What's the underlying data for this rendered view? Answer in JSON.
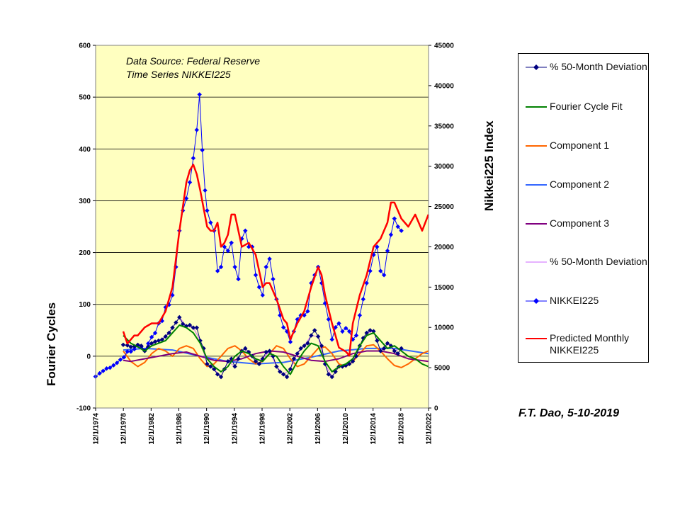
{
  "chart_data": {
    "type": "line",
    "title": "",
    "ylabel_left": "Fourier Cycles",
    "ylabel_right": "Nikkei225 Index",
    "annotation_lines": [
      "Data Source:  Federal Reserve",
      "Time Series NIKKEI225"
    ],
    "x_tick_labels": [
      "12/1/1974",
      "12/1/1978",
      "12/1/1982",
      "12/1/1986",
      "12/1/1990",
      "12/1/1994",
      "12/1/1998",
      "12/1/2002",
      "12/1/2006",
      "12/1/2010",
      "12/1/2014",
      "12/1/2018",
      "12/1/2022"
    ],
    "xlim": [
      1974.92,
      2022.92
    ],
    "ylim_left": [
      -100,
      600
    ],
    "y_ticks_left": [
      "-100",
      "0",
      "100",
      "200",
      "300",
      "400",
      "500",
      "600"
    ],
    "ylim_right": [
      0,
      45000
    ],
    "y_ticks_right": [
      "0",
      "5000",
      "10000",
      "15000",
      "20000",
      "25000",
      "30000",
      "35000",
      "40000",
      "45000"
    ],
    "plot_background": "#ffffc0",
    "gridlines": true,
    "legend_position": "right",
    "signature": "F.T. Dao, 5-10-2019",
    "series": [
      {
        "name": "% 50-Month Deviation",
        "axis": "left",
        "color": "#000080",
        "marker": "diamond",
        "x": [
          1978.9,
          1979.5,
          1980.0,
          1980.5,
          1981.0,
          1981.5,
          1982.0,
          1982.5,
          1983.0,
          1983.5,
          1984.0,
          1984.5,
          1985.0,
          1985.5,
          1986.0,
          1986.5,
          1987.0,
          1987.5,
          1988.0,
          1988.5,
          1989.0,
          1989.5,
          1990.0,
          1990.5,
          1991.0,
          1991.5,
          1992.0,
          1992.5,
          1993.0,
          1993.5,
          1994.0,
          1994.5,
          1995.0,
          1995.5,
          1996.0,
          1996.5,
          1997.0,
          1997.5,
          1998.0,
          1998.5,
          1999.0,
          1999.5,
          2000.0,
          2000.5,
          2001.0,
          2001.5,
          2002.0,
          2002.5,
          2003.0,
          2003.5,
          2004.0,
          2004.5,
          2005.0,
          2005.5,
          2006.0,
          2006.5,
          2007.0,
          2007.5,
          2008.0,
          2008.5,
          2009.0,
          2009.5,
          2010.0,
          2010.5,
          2011.0,
          2011.5,
          2012.0,
          2012.5,
          2013.0,
          2013.5,
          2014.0,
          2014.5,
          2015.0,
          2015.5,
          2016.0,
          2016.5,
          2017.0,
          2017.5,
          2018.0,
          2018.5,
          2019.0
        ],
        "y": [
          22,
          21,
          18,
          19,
          22,
          20,
          10,
          18,
          25,
          28,
          30,
          32,
          38,
          45,
          55,
          65,
          75,
          62,
          58,
          60,
          55,
          55,
          30,
          15,
          -15,
          -20,
          -25,
          -35,
          -40,
          -25,
          -10,
          -5,
          -20,
          -5,
          10,
          15,
          8,
          0,
          -10,
          -15,
          -5,
          8,
          10,
          0,
          -20,
          -30,
          -35,
          -40,
          -25,
          -5,
          5,
          15,
          20,
          25,
          40,
          50,
          38,
          20,
          -15,
          -35,
          -40,
          -30,
          -20,
          -20,
          -18,
          -15,
          -10,
          0,
          20,
          35,
          45,
          50,
          48,
          30,
          10,
          15,
          25,
          20,
          10,
          5,
          15
        ]
      },
      {
        "name": "Fourier Cycle Fit",
        "axis": "left",
        "color": "#008000",
        "marker": "none",
        "x": [
          1978.9,
          1980.0,
          1981.0,
          1982.0,
          1983.0,
          1984.0,
          1985.0,
          1986.0,
          1987.0,
          1988.0,
          1989.0,
          1990.0,
          1991.0,
          1992.0,
          1993.0,
          1994.0,
          1995.0,
          1996.0,
          1997.0,
          1998.0,
          1999.0,
          2000.0,
          2001.0,
          2002.0,
          2003.0,
          2004.0,
          2005.0,
          2006.0,
          2007.0,
          2008.0,
          2009.0,
          2010.0,
          2011.0,
          2012.0,
          2013.0,
          2014.0,
          2015.0,
          2016.0,
          2017.0,
          2018.0,
          2019.0,
          2020.0,
          2021.0,
          2022.0,
          2022.9
        ],
        "y": [
          40,
          25,
          18,
          10,
          20,
          25,
          30,
          45,
          60,
          55,
          45,
          25,
          -5,
          -20,
          -30,
          -20,
          0,
          10,
          5,
          -5,
          -10,
          5,
          0,
          -20,
          -35,
          -10,
          10,
          25,
          20,
          -10,
          -30,
          -20,
          -15,
          -5,
          20,
          40,
          45,
          30,
          15,
          20,
          10,
          0,
          -5,
          -15,
          -20
        ]
      },
      {
        "name": "Component 1",
        "axis": "left",
        "color": "#ff6600",
        "marker": "none",
        "x": [
          1978.9,
          1980.0,
          1981.0,
          1982.0,
          1983.0,
          1984.0,
          1985.0,
          1986.0,
          1987.0,
          1988.0,
          1989.0,
          1990.0,
          1991.0,
          1992.0,
          1993.0,
          1994.0,
          1995.0,
          1996.0,
          1997.0,
          1998.0,
          1999.0,
          2000.0,
          2001.0,
          2002.0,
          2003.0,
          2004.0,
          2005.0,
          2006.0,
          2007.0,
          2008.0,
          2009.0,
          2010.0,
          2011.0,
          2012.0,
          2013.0,
          2014.0,
          2015.0,
          2016.0,
          2017.0,
          2018.0,
          2019.0,
          2020.0,
          2021.0,
          2022.0,
          2022.9
        ],
        "y": [
          10,
          -10,
          -20,
          -12,
          5,
          15,
          10,
          0,
          15,
          20,
          15,
          -5,
          -20,
          -15,
          0,
          15,
          20,
          10,
          -5,
          -15,
          -10,
          5,
          20,
          15,
          -5,
          -20,
          -15,
          0,
          15,
          18,
          5,
          -15,
          -20,
          -10,
          5,
          20,
          22,
          10,
          -5,
          -18,
          -22,
          -15,
          -5,
          5,
          10
        ]
      },
      {
        "name": "Component 2",
        "axis": "left",
        "color": "#3366ff",
        "marker": "none",
        "x": [
          1978.9,
          1982.0,
          1986.0,
          1990.0,
          1994.0,
          1998.0,
          2002.0,
          2006.0,
          2010.0,
          2014.0,
          2018.0,
          2022.9
        ],
        "y": [
          12,
          15,
          12,
          0,
          -10,
          -15,
          -12,
          -2,
          10,
          15,
          15,
          5
        ]
      },
      {
        "name": "Component 3",
        "axis": "left",
        "color": "#800080",
        "marker": "none",
        "x": [
          1978.9,
          1980.0,
          1982.0,
          1984.0,
          1986.0,
          1988.0,
          1990.0,
          1992.0,
          1994.0,
          1996.0,
          1998.0,
          2000.0,
          2002.0,
          2004.0,
          2006.0,
          2008.0,
          2010.0,
          2012.0,
          2014.0,
          2016.0,
          2018.0,
          2020.0,
          2022.9
        ],
        "y": [
          -8,
          -10,
          -5,
          0,
          5,
          8,
          0,
          -8,
          -10,
          -5,
          5,
          10,
          8,
          0,
          -8,
          -10,
          -5,
          5,
          10,
          10,
          5,
          -5,
          -10
        ]
      },
      {
        "name": "% 50-Month Deviation",
        "axis": "left",
        "color": "#cc66ff",
        "marker": "none",
        "x": [
          1978.9,
          1980.0,
          1981.0,
          1982.0,
          1983.0,
          1984.0,
          1985.0,
          1986.0,
          1987.0,
          1988.0,
          1989.0,
          1990.0,
          1991.0,
          1992.0,
          1993.0,
          1994.0,
          1995.0,
          1996.0,
          1997.0,
          1998.0,
          1999.0,
          2000.0,
          2001.0,
          2002.0,
          2003.0,
          2004.0,
          2005.0,
          2006.0,
          2007.0,
          2008.0,
          2009.0,
          2010.0,
          2011.0,
          2012.0,
          2013.0,
          2014.0,
          2015.0,
          2016.0,
          2017.0,
          2018.0,
          2019.0
        ],
        "y": [
          22,
          18,
          22,
          10,
          25,
          30,
          38,
          55,
          75,
          58,
          55,
          30,
          -15,
          -25,
          -40,
          -10,
          -20,
          10,
          8,
          -10,
          -5,
          10,
          -20,
          -35,
          -25,
          5,
          20,
          40,
          38,
          -15,
          -40,
          -20,
          -18,
          -10,
          20,
          45,
          48,
          10,
          25,
          10,
          15
        ]
      },
      {
        "name": "NIKKEI225",
        "axis": "right",
        "color": "#0000ff",
        "marker": "diamond",
        "x": [
          1974.9,
          1975.5,
          1976.0,
          1976.5,
          1977.0,
          1977.5,
          1978.0,
          1978.5,
          1979.0,
          1979.5,
          1980.0,
          1980.5,
          1981.0,
          1981.5,
          1982.0,
          1982.5,
          1983.0,
          1983.5,
          1984.0,
          1984.5,
          1985.0,
          1985.5,
          1986.0,
          1986.5,
          1987.0,
          1987.5,
          1988.0,
          1988.5,
          1989.0,
          1989.5,
          1989.9,
          1990.3,
          1990.7,
          1991.0,
          1991.5,
          1992.0,
          1992.5,
          1993.0,
          1993.5,
          1994.0,
          1994.5,
          1995.0,
          1995.5,
          1996.0,
          1996.5,
          1997.0,
          1997.5,
          1998.0,
          1998.5,
          1999.0,
          1999.5,
          2000.0,
          2000.5,
          2001.0,
          2001.5,
          2002.0,
          2002.5,
          2003.0,
          2003.5,
          2004.0,
          2004.5,
          2005.0,
          2005.5,
          2006.0,
          2006.5,
          2007.0,
          2007.5,
          2008.0,
          2008.5,
          2009.0,
          2009.5,
          2010.0,
          2010.5,
          2011.0,
          2011.5,
          2012.0,
          2012.5,
          2013.0,
          2013.5,
          2014.0,
          2014.5,
          2015.0,
          2015.5,
          2016.0,
          2016.5,
          2017.0,
          2017.5,
          2018.0,
          2018.5,
          2019.0
        ],
        "y": [
          3900,
          4300,
          4600,
          4900,
          5000,
          5300,
          5600,
          6000,
          6300,
          7000,
          7000,
          7300,
          7800,
          7600,
          7100,
          8000,
          8800,
          9300,
          10500,
          10800,
          12500,
          12800,
          14000,
          17500,
          22000,
          24500,
          26000,
          28000,
          31000,
          34500,
          38900,
          32000,
          27000,
          24500,
          23000,
          22000,
          17000,
          17500,
          20000,
          19500,
          20500,
          17500,
          16000,
          21000,
          22000,
          20000,
          20000,
          16500,
          15000,
          14000,
          17500,
          18500,
          16000,
          13500,
          11500,
          10000,
          9500,
          8200,
          9500,
          11000,
          11500,
          11500,
          12000,
          15500,
          16500,
          17500,
          15500,
          13000,
          11000,
          8500,
          10000,
          10500,
          9500,
          9900,
          9500,
          8500,
          9000,
          11500,
          13500,
          15500,
          17000,
          19000,
          20000,
          17000,
          16500,
          19500,
          21500,
          23500,
          22500,
          22000
        ]
      },
      {
        "name": "Predicted Monthly NIKKEI225",
        "axis": "right",
        "color": "#ff0000",
        "marker": "none",
        "x": [
          1978.9,
          1979.5,
          1980.0,
          1980.5,
          1981.0,
          1982.0,
          1983.0,
          1984.0,
          1985.0,
          1986.0,
          1987.0,
          1988.0,
          1988.5,
          1989.0,
          1989.5,
          1990.0,
          1991.0,
          1991.5,
          1992.0,
          1992.5,
          1993.0,
          1993.5,
          1994.0,
          1994.5,
          1995.0,
          1996.0,
          1997.0,
          1998.0,
          1998.5,
          1999.0,
          1999.5,
          2000.0,
          2000.5,
          2001.0,
          2002.0,
          2002.5,
          2003.0,
          2004.0,
          2005.0,
          2006.0,
          2007.0,
          2007.5,
          2008.0,
          2009.0,
          2010.0,
          2011.0,
          2011.5,
          2012.0,
          2013.0,
          2014.0,
          2015.0,
          2016.0,
          2017.0,
          2017.5,
          2018.0,
          2019.0,
          2020.0,
          2021.0,
          2021.5,
          2022.0,
          2022.9
        ],
        "y": [
          9500,
          8000,
          8500,
          9000,
          9000,
          10000,
          10500,
          10500,
          12000,
          15000,
          22000,
          28000,
          29500,
          30200,
          29000,
          27000,
          22500,
          22000,
          22000,
          23000,
          20000,
          20500,
          21500,
          24000,
          24000,
          20000,
          20500,
          19000,
          17000,
          15000,
          15500,
          15500,
          14500,
          13500,
          11000,
          10500,
          8500,
          10500,
          12000,
          15000,
          17500,
          16500,
          14000,
          10500,
          7500,
          7000,
          6500,
          10500,
          14000,
          16500,
          20000,
          21000,
          23000,
          25500,
          25500,
          23500,
          22500,
          24000,
          23000,
          22000,
          24000
        ]
      }
    ]
  }
}
